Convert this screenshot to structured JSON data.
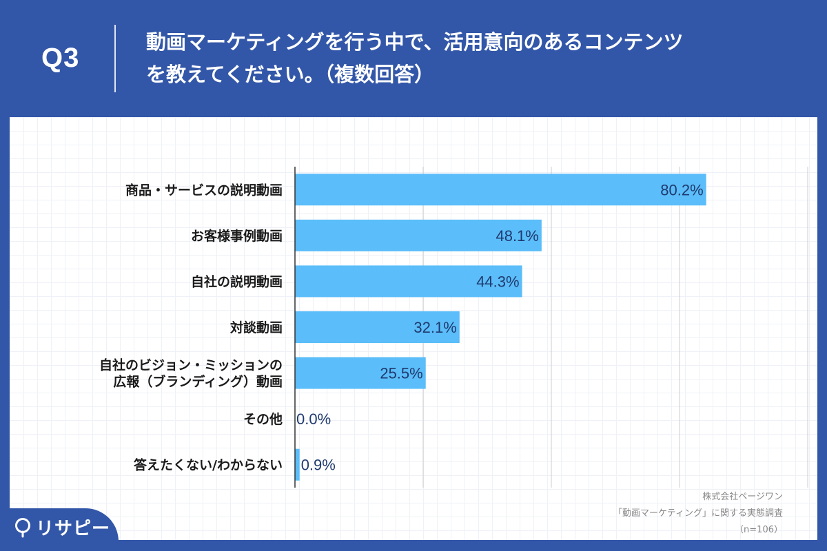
{
  "header": {
    "question_no": "Q3",
    "title_line1": "動画マーケティングを行う中で、活用意向のあるコンテンツ",
    "title_line2": "を教えてください。（複数回答）"
  },
  "colors": {
    "background": "#3357a8",
    "bar": "#5bbdf9",
    "value_text": "#1f3a6e"
  },
  "chart_data": {
    "type": "bar",
    "orientation": "horizontal",
    "categories": [
      "商品・サービスの説明動画",
      "お客様事例動画",
      "自社の説明動画",
      "対談動画",
      "自社のビジョン・ミッションの\n広報（ブランディング）動画",
      "その他",
      "答えたくない/わからない"
    ],
    "values": [
      80.2,
      48.1,
      44.3,
      32.1,
      25.5,
      0.0,
      0.9
    ],
    "value_labels": [
      "80.2%",
      "48.1%",
      "44.3%",
      "32.1%",
      "25.5%",
      "0.0%",
      "0.9%"
    ],
    "xlim": [
      0,
      100
    ],
    "grid": true,
    "unit": "%"
  },
  "source": {
    "line1": "株式会社ページワン",
    "line2": "「動画マーケティング」に関する実態調査",
    "line3": "（n=106）"
  },
  "logo": {
    "text": "リサピー",
    "icon": "lightbulb-icon"
  }
}
